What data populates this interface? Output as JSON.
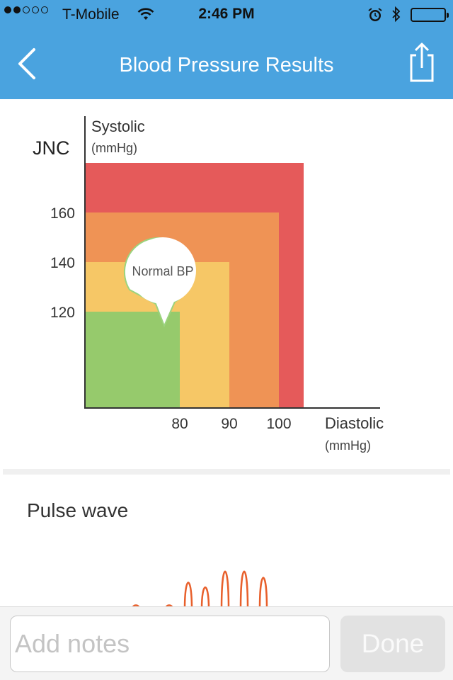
{
  "status_bar": {
    "carrier": "T-Mobile",
    "time": "2:46 PM",
    "signal_dots_filled": 2,
    "signal_dots_total": 5,
    "icons": [
      "wifi-icon",
      "alarm-icon",
      "bluetooth-icon",
      "battery-icon"
    ]
  },
  "nav": {
    "title": "Blood Pressure Results",
    "back_icon": "chevron-left-icon",
    "share_icon": "share-icon"
  },
  "colors": {
    "nav_bg": "#4aa3df",
    "zone_red": "#e55a5a",
    "zone_orange": "#ef9355",
    "zone_yellow": "#f6c766",
    "zone_green": "#96ca6c",
    "pulse_line": "#e8602c"
  },
  "chart_data": {
    "type": "area",
    "standard_label": "JNC",
    "ylabel": "Systolic",
    "ylabel_unit": "(mmHg)",
    "xlabel": "Diastolic",
    "xlabel_unit": "(mmHg)",
    "y_ticks": [
      "120",
      "140",
      "160"
    ],
    "x_ticks": [
      "80",
      "90",
      "100"
    ],
    "zones": [
      {
        "color": "red",
        "diastolic_max": 105,
        "systolic_max": 180
      },
      {
        "color": "orange",
        "diastolic_max": 100,
        "systolic_max": 160
      },
      {
        "color": "yellow",
        "diastolic_max": 90,
        "systolic_max": 140
      },
      {
        "color": "green",
        "diastolic_max": 80,
        "systolic_max": 120
      }
    ],
    "marker": {
      "label": "Normal BP",
      "diastolic": 78,
      "systolic": 120
    }
  },
  "pulse": {
    "title": "Pulse wave",
    "peaks": [
      {
        "t": 192,
        "amp": 0.08
      },
      {
        "t": 239,
        "amp": 0.08
      },
      {
        "t": 266,
        "amp": 0.55
      },
      {
        "t": 290,
        "amp": 0.45
      },
      {
        "t": 318,
        "amp": 0.78
      },
      {
        "t": 345,
        "amp": 0.78
      },
      {
        "t": 372,
        "amp": 0.65
      }
    ]
  },
  "notes": {
    "placeholder": "Add notes",
    "done_label": "Done"
  }
}
